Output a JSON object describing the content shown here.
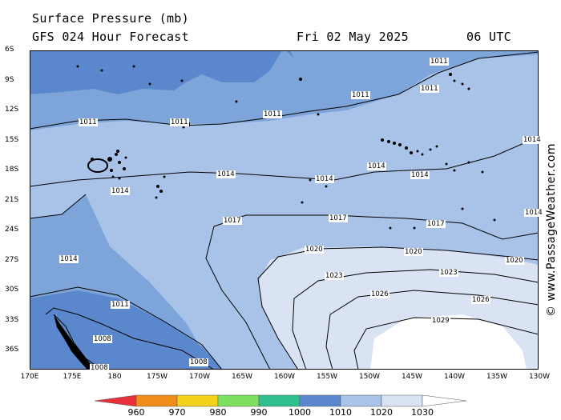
{
  "header": {
    "title": "Surface Pressure (mb)",
    "forecast": "GFS 024 Hour Forecast",
    "date": "Fri 02 May 2025",
    "time": "06 UTC"
  },
  "map": {
    "lat_labels": [
      "6S",
      "9S",
      "12S",
      "15S",
      "18S",
      "21S",
      "24S",
      "27S",
      "30S",
      "33S",
      "36S"
    ],
    "lon_labels": [
      "170E",
      "175E",
      "180",
      "175W",
      "170W",
      "165W",
      "160W",
      "155W",
      "150W",
      "145W",
      "140W",
      "135W",
      "130W"
    ],
    "colors": {
      "deep_low": "#5b88cc",
      "low": "#7ea5da",
      "mid": "#a9c3e8",
      "high": "#d9e3f3",
      "peak": "#ffffff",
      "land": "#000000"
    },
    "isobar_labels": [
      {
        "text": "1011",
        "id": "a"
      },
      {
        "text": "1011",
        "id": "b"
      },
      {
        "text": "1011",
        "id": "c"
      },
      {
        "text": "1011",
        "id": "d"
      },
      {
        "text": "1011",
        "id": "e"
      },
      {
        "text": "1011",
        "id": "f"
      },
      {
        "text": "1014",
        "id": "g"
      },
      {
        "text": "1014",
        "id": "h"
      },
      {
        "text": "1014",
        "id": "i"
      },
      {
        "text": "1014",
        "id": "j"
      },
      {
        "text": "1014",
        "id": "k"
      },
      {
        "text": "1014",
        "id": "l"
      },
      {
        "text": "1014",
        "id": "m"
      },
      {
        "text": "1017",
        "id": "n"
      },
      {
        "text": "1017",
        "id": "o"
      },
      {
        "text": "1017",
        "id": "p"
      },
      {
        "text": "1014",
        "id": "q"
      },
      {
        "text": "1020",
        "id": "r"
      },
      {
        "text": "1020",
        "id": "s"
      },
      {
        "text": "1020",
        "id": "t"
      },
      {
        "text": "1023",
        "id": "u"
      },
      {
        "text": "1023",
        "id": "v"
      },
      {
        "text": "1026",
        "id": "w"
      },
      {
        "text": "1026",
        "id": "x"
      },
      {
        "text": "1029",
        "id": "y"
      },
      {
        "text": "1011",
        "id": "z"
      },
      {
        "text": "1008",
        "id": "aa"
      },
      {
        "text": "1008",
        "id": "ab"
      },
      {
        "text": "1008",
        "id": "ac"
      }
    ]
  },
  "legend": {
    "labels": [
      "960",
      "970",
      "980",
      "990",
      "1000",
      "1010",
      "1020",
      "1030"
    ],
    "colors": [
      "#e8303a",
      "#f08c1a",
      "#f2d21a",
      "#7ee060",
      "#30c090",
      "#5b88cc",
      "#a9c3e8",
      "#d9e3f3",
      "#ffffff"
    ]
  },
  "credit": "© www.PassageWeather.com"
}
